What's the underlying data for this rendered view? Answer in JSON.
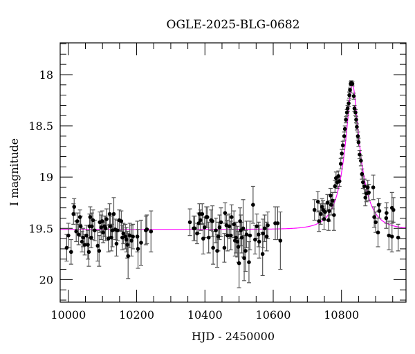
{
  "chart_data": {
    "type": "scatter",
    "title": "OGLE-2025-BLG-0682",
    "xlabel": "HJD - 2450000",
    "ylabel": "I magnitude",
    "xlim": [
      9976,
      10989
    ],
    "ylim": [
      20.22,
      17.69
    ],
    "y_inverted": true,
    "x_ticks": [
      10000,
      10200,
      10400,
      10600,
      10800
    ],
    "x_tick_labels": [
      "10000",
      "10200",
      "10400",
      "10600",
      "10800"
    ],
    "x_minor_step": 50,
    "y_ticks": [
      18,
      18.5,
      19,
      19.5,
      20
    ],
    "y_tick_labels": [
      "18",
      "18.5",
      "19",
      "19.5",
      "20"
    ],
    "y_minor_step": 0.1,
    "grid": false,
    "colors": {
      "points": "#000000",
      "errorbars": "#555555",
      "model": "#ff00ff",
      "axes": "#000000"
    },
    "model": {
      "type": "point-lens light curve",
      "t0": 10832,
      "u0": 0.28,
      "tE": 49,
      "baseline_mag": 19.51
    },
    "points_format": [
      "hjd",
      "mag",
      "err"
    ],
    "points": [
      [
        9995,
        19.69,
        0.13
      ],
      [
        10000,
        19.57,
        0.12
      ],
      [
        10008,
        19.73,
        0.12
      ],
      [
        10015,
        19.36,
        0.1
      ],
      [
        10017,
        19.29,
        0.08
      ],
      [
        10023,
        19.53,
        0.1
      ],
      [
        10026,
        19.43,
        0.08
      ],
      [
        10030,
        19.56,
        0.1
      ],
      [
        10034,
        19.39,
        0.07
      ],
      [
        10036,
        19.48,
        0.1
      ],
      [
        10040,
        19.63,
        0.1
      ],
      [
        10043,
        19.59,
        0.09
      ],
      [
        10048,
        19.66,
        0.1
      ],
      [
        10053,
        19.57,
        0.1
      ],
      [
        10057,
        19.66,
        0.14
      ],
      [
        10060,
        19.73,
        0.14
      ],
      [
        10062,
        19.48,
        0.12
      ],
      [
        10064,
        19.39,
        0.1
      ],
      [
        10067,
        19.59,
        0.1
      ],
      [
        10069,
        19.48,
        0.13
      ],
      [
        10072,
        19.42,
        0.1
      ],
      [
        10077,
        19.52,
        0.1
      ],
      [
        10086,
        19.67,
        0.15
      ],
      [
        10090,
        19.72,
        0.15
      ],
      [
        10092,
        19.44,
        0.1
      ],
      [
        10096,
        19.49,
        0.12
      ],
      [
        10099,
        19.43,
        0.1
      ],
      [
        10102,
        19.54,
        0.1
      ],
      [
        10106,
        19.48,
        0.1
      ],
      [
        10109,
        19.5,
        0.12
      ],
      [
        10112,
        19.41,
        0.1
      ],
      [
        10117,
        19.6,
        0.13
      ],
      [
        10121,
        19.36,
        0.1
      ],
      [
        10123,
        19.48,
        0.1
      ],
      [
        10126,
        19.59,
        0.13
      ],
      [
        10129,
        19.52,
        0.16
      ],
      [
        10133,
        19.36,
        0.16
      ],
      [
        10137,
        19.51,
        0.1
      ],
      [
        10141,
        19.65,
        0.12
      ],
      [
        10144,
        19.52,
        0.1
      ],
      [
        10149,
        19.42,
        0.1
      ],
      [
        10155,
        19.43,
        0.1
      ],
      [
        10158,
        19.59,
        0.12
      ],
      [
        10161,
        19.55,
        0.1
      ],
      [
        10167,
        19.58,
        0.12
      ],
      [
        10170,
        19.61,
        0.12
      ],
      [
        10173,
        19.66,
        0.13
      ],
      [
        10175,
        19.77,
        0.22
      ],
      [
        10180,
        19.57,
        0.12
      ],
      [
        10185,
        19.62,
        0.15
      ],
      [
        10189,
        19.58,
        0.12
      ],
      [
        10202,
        19.58,
        0.15
      ],
      [
        10204,
        19.7,
        0.19
      ],
      [
        10213,
        19.64,
        0.22
      ],
      [
        10227,
        19.52,
        0.14
      ],
      [
        10230,
        19.51,
        0.14
      ],
      [
        10242,
        19.53,
        0.2
      ],
      [
        10356,
        19.44,
        0.13
      ],
      [
        10367,
        19.5,
        0.12
      ],
      [
        10370,
        19.5,
        0.12
      ],
      [
        10377,
        19.55,
        0.1
      ],
      [
        10382,
        19.45,
        0.1
      ],
      [
        10384,
        19.36,
        0.1
      ],
      [
        10387,
        19.42,
        0.1
      ],
      [
        10392,
        19.36,
        0.1
      ],
      [
        10395,
        19.6,
        0.15
      ],
      [
        10399,
        19.49,
        0.1
      ],
      [
        10404,
        19.39,
        0.1
      ],
      [
        10407,
        19.39,
        0.1
      ],
      [
        10411,
        19.59,
        0.15
      ],
      [
        10418,
        19.42,
        0.1
      ],
      [
        10422,
        19.43,
        0.15
      ],
      [
        10424,
        19.69,
        0.16
      ],
      [
        10432,
        19.52,
        0.12
      ],
      [
        10436,
        19.72,
        0.16
      ],
      [
        10439,
        19.58,
        0.14
      ],
      [
        10443,
        19.49,
        0.12
      ],
      [
        10447,
        19.44,
        0.14
      ],
      [
        10457,
        19.69,
        0.14
      ],
      [
        10459,
        19.35,
        0.1
      ],
      [
        10463,
        19.47,
        0.1
      ],
      [
        10466,
        19.57,
        0.15
      ],
      [
        10471,
        19.48,
        0.12
      ],
      [
        10476,
        19.57,
        0.14
      ],
      [
        10478,
        19.39,
        0.12
      ],
      [
        10485,
        19.46,
        0.13
      ],
      [
        10488,
        19.62,
        0.15
      ],
      [
        10491,
        19.59,
        0.15
      ],
      [
        10495,
        19.63,
        0.15
      ],
      [
        10498,
        19.68,
        0.15
      ],
      [
        10500,
        19.84,
        0.24
      ],
      [
        10503,
        19.43,
        0.13
      ],
      [
        10505,
        19.52,
        0.15
      ],
      [
        10508,
        19.59,
        0.15
      ],
      [
        10512,
        19.5,
        0.28
      ],
      [
        10515,
        19.79,
        0.22
      ],
      [
        10519,
        19.72,
        0.2
      ],
      [
        10522,
        19.56,
        0.13
      ],
      [
        10529,
        19.83,
        0.2
      ],
      [
        10532,
        19.57,
        0.14
      ],
      [
        10541,
        19.27,
        0.18
      ],
      [
        10547,
        19.61,
        0.14
      ],
      [
        10552,
        19.48,
        0.12
      ],
      [
        10557,
        19.56,
        0.12
      ],
      [
        10559,
        19.63,
        0.16
      ],
      [
        10569,
        19.75,
        0.21
      ],
      [
        10570,
        19.55,
        0.14
      ],
      [
        10575,
        19.5,
        0.13
      ],
      [
        10581,
        19.58,
        0.14
      ],
      [
        10584,
        19.47,
        0.13
      ],
      [
        10606,
        19.45,
        0.16
      ],
      [
        10613,
        19.45,
        0.16
      ],
      [
        10621,
        19.62,
        0.28
      ],
      [
        10721,
        19.32,
        0.1
      ],
      [
        10731,
        19.24,
        0.1
      ],
      [
        10734,
        19.43,
        0.1
      ],
      [
        10739,
        19.36,
        0.1
      ],
      [
        10743,
        19.29,
        0.08
      ],
      [
        10746,
        19.32,
        0.09
      ],
      [
        10749,
        19.41,
        0.1
      ],
      [
        10752,
        19.34,
        0.08
      ],
      [
        10759,
        19.25,
        0.08
      ],
      [
        10762,
        19.42,
        0.1
      ],
      [
        10764,
        19.33,
        0.1
      ],
      [
        10768,
        19.18,
        0.07
      ],
      [
        10770,
        19.27,
        0.1
      ],
      [
        10774,
        19.23,
        0.08
      ],
      [
        10778,
        19.37,
        0.15
      ],
      [
        10781,
        19.09,
        0.06
      ],
      [
        10784,
        19.01,
        0.06
      ],
      [
        10788,
        19.05,
        0.06
      ],
      [
        10791,
        18.99,
        0.05
      ],
      [
        10794,
        19.04,
        0.05
      ],
      [
        10798,
        18.87,
        0.05
      ],
      [
        10801,
        18.77,
        0.04
      ],
      [
        10804,
        18.69,
        0.04
      ],
      [
        10808,
        18.6,
        0.04
      ],
      [
        10810,
        18.53,
        0.03
      ],
      [
        10813,
        18.44,
        0.03
      ],
      [
        10816,
        18.37,
        0.03
      ],
      [
        10818,
        18.33,
        0.03
      ],
      [
        10821,
        18.28,
        0.03
      ],
      [
        10823,
        18.2,
        0.03
      ],
      [
        10825,
        18.15,
        0.02
      ],
      [
        10827,
        18.09,
        0.02
      ],
      [
        10829,
        18.08,
        0.02
      ],
      [
        10832,
        18.09,
        0.02
      ],
      [
        10836,
        18.21,
        0.03
      ],
      [
        10838,
        18.33,
        0.03
      ],
      [
        10841,
        18.37,
        0.03
      ],
      [
        10843,
        18.44,
        0.03
      ],
      [
        10845,
        18.51,
        0.03
      ],
      [
        10848,
        18.6,
        0.04
      ],
      [
        10850,
        18.66,
        0.04
      ],
      [
        10853,
        18.78,
        0.04
      ],
      [
        10857,
        18.84,
        0.05
      ],
      [
        10860,
        18.97,
        0.05
      ],
      [
        10863,
        19.05,
        0.06
      ],
      [
        10867,
        19.09,
        0.07
      ],
      [
        10870,
        19.2,
        0.08
      ],
      [
        10873,
        19.16,
        0.08
      ],
      [
        10877,
        19.1,
        0.07
      ],
      [
        10880,
        19.15,
        0.08
      ],
      [
        10893,
        19.1,
        0.12
      ],
      [
        10896,
        19.39,
        0.1
      ],
      [
        10900,
        19.44,
        0.1
      ],
      [
        10907,
        19.54,
        0.14
      ],
      [
        10909,
        19.27,
        0.06
      ],
      [
        10911,
        19.33,
        0.07
      ],
      [
        10931,
        19.4,
        0.1
      ],
      [
        10932,
        19.35,
        0.1
      ],
      [
        10939,
        19.57,
        0.14
      ],
      [
        10948,
        19.3,
        0.15
      ],
      [
        10948,
        19.58,
        0.15
      ],
      [
        10952,
        19.32,
        0.12
      ],
      [
        10966,
        19.59,
        0.13
      ]
    ]
  }
}
